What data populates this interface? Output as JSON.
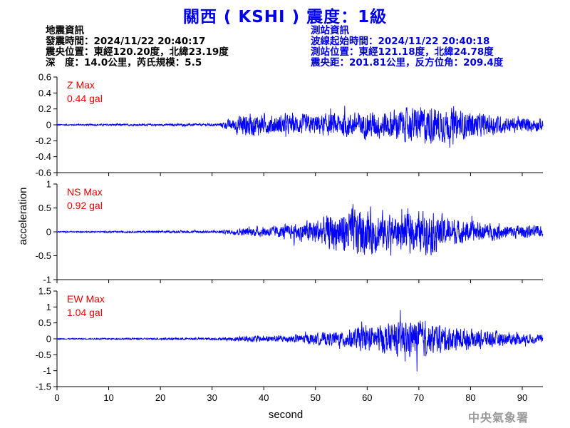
{
  "title": "關西 ( KSHI ) 震度：1級",
  "quake_info": {
    "heading": "地震資訊",
    "origin_time": "發震時間：2024/11/22 20:40:17",
    "epicenter": "震央位置：東經120.20度，北緯23.19度",
    "depth_magnitude": "深　度：14.0公里，芮氏規模：5.5"
  },
  "station_info": {
    "heading": "測站資訊",
    "wave_start": "波線起始時間：2024/11/22 20:40:18",
    "location": "測站位置：東經121.18度，北緯24.78度",
    "distance": "震央距：201.81公里，反方位角：209.4度"
  },
  "watermark": "中央氣象署",
  "colors": {
    "title": "#0000ee",
    "station_info": "#0000dd",
    "trace": "#0000ff",
    "max_label": "#ee0000"
  },
  "chart_data": [
    {
      "type": "line",
      "component": "Z",
      "max_label": "Z Max",
      "max_value": "0.44 gal",
      "ylim": [
        -0.6,
        0.6
      ],
      "yticks": [
        -0.6,
        -0.4,
        -0.2,
        0,
        0.2,
        0.4,
        0.6
      ],
      "ytick_labels": [
        "-0.6",
        "-0.4",
        "-0.2",
        "0",
        "0.2",
        "0.4",
        "0.6"
      ],
      "envelope": {
        "times": [
          0,
          31,
          34,
          36,
          40,
          50,
          58,
          63,
          70,
          72,
          80,
          88,
          94
        ],
        "amps": [
          0.01,
          0.02,
          0.1,
          0.2,
          0.15,
          0.16,
          0.2,
          0.22,
          0.28,
          0.3,
          0.2,
          0.12,
          0.1
        ]
      }
    },
    {
      "type": "line",
      "component": "NS",
      "max_label": "NS Max",
      "max_value": "0.92 gal",
      "ylim": [
        -1,
        1
      ],
      "yticks": [
        -1,
        -0.5,
        0,
        0.5,
        1
      ],
      "ytick_labels": [
        "-1",
        "-0.5",
        "0",
        "0.5",
        "1"
      ],
      "envelope": {
        "times": [
          0,
          31,
          36,
          45,
          52,
          57,
          60,
          66,
          72,
          78,
          85,
          94
        ],
        "amps": [
          0.015,
          0.03,
          0.1,
          0.18,
          0.4,
          0.65,
          0.6,
          0.45,
          0.55,
          0.3,
          0.2,
          0.15
        ]
      }
    },
    {
      "type": "line",
      "component": "EW",
      "max_label": "EW Max",
      "max_value": "1.04 gal",
      "ylim": [
        -1.5,
        1.5
      ],
      "yticks": [
        -1.5,
        -1,
        -0.5,
        0,
        0.5,
        1,
        1.5
      ],
      "ytick_labels": [
        "-1.5",
        "-1",
        "-0.5",
        "0",
        "0.5",
        "1",
        "1.5"
      ],
      "envelope": {
        "times": [
          0,
          31,
          36,
          45,
          55,
          58,
          62,
          66,
          69,
          72,
          78,
          85,
          94
        ],
        "amps": [
          0.02,
          0.04,
          0.12,
          0.15,
          0.3,
          0.45,
          0.55,
          0.65,
          0.75,
          0.6,
          0.45,
          0.3,
          0.15
        ]
      }
    }
  ],
  "x_axis": {
    "label": "second",
    "xlim": [
      0,
      94
    ],
    "ticks": [
      0,
      10,
      20,
      30,
      40,
      50,
      60,
      70,
      80,
      90
    ],
    "tick_labels": [
      "0",
      "10",
      "20",
      "30",
      "40",
      "50",
      "60",
      "70",
      "80",
      "90"
    ]
  },
  "y_axis_label": "acceleration"
}
